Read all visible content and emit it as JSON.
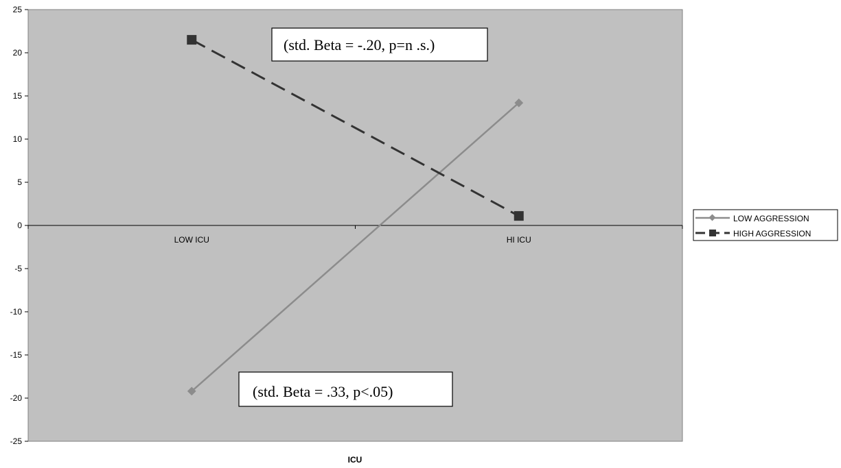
{
  "chart_data": {
    "type": "line",
    "categories": [
      "LOW ICU",
      "HI ICU"
    ],
    "xlabel": "ICU",
    "ylabel": "",
    "ylim": [
      -25,
      25
    ],
    "y_ticks": [
      "25",
      "20",
      "15",
      "10",
      "5",
      "0",
      "-5",
      "-10",
      "-15",
      "-20",
      "-25"
    ],
    "grid": false,
    "legend_position": "right",
    "series": [
      {
        "name": "LOW AGGRESSION",
        "values": [
          -19.2,
          14.2
        ],
        "color": "#8c8c8c",
        "marker": "diamond",
        "dash": "solid"
      },
      {
        "name": "HIGH AGGRESSION",
        "values": [
          21.5,
          1.1
        ],
        "color": "#333333",
        "marker": "square",
        "dash": "dashed"
      }
    ],
    "annotations": [
      {
        "text": "(std. Beta = -.20, p=n .s.)"
      },
      {
        "text": "(std. Beta = .33, p<.05)"
      }
    ],
    "plot_background": "#c0c0c0"
  }
}
